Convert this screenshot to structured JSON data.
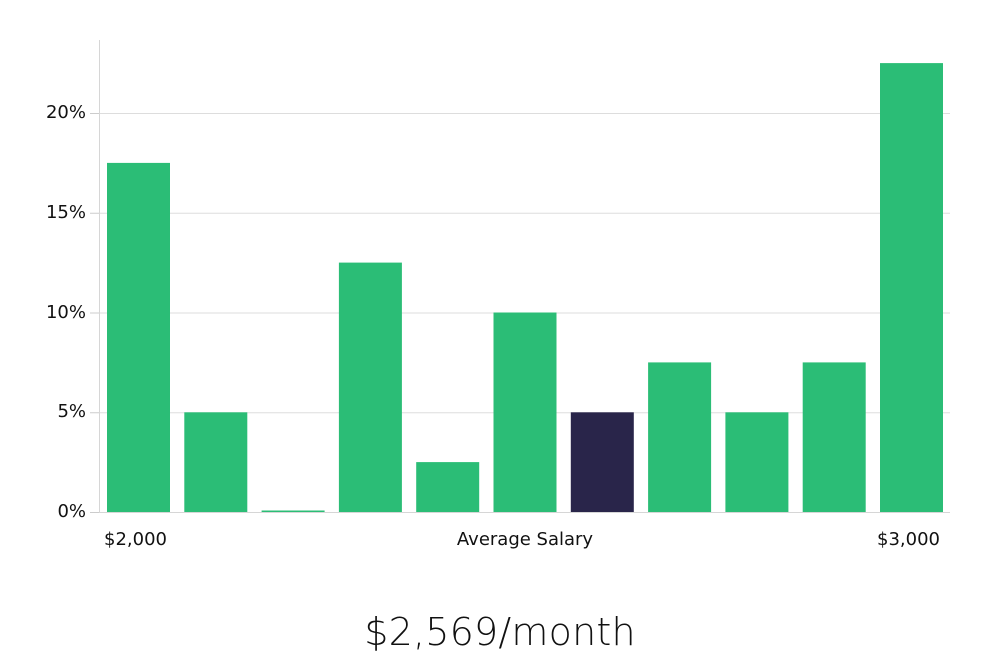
{
  "chart_data": {
    "type": "bar",
    "title": "",
    "xlabel": "Average Salary",
    "ylabel": "",
    "x_range_labels": {
      "min": "$2,000",
      "max": "$3,000"
    },
    "categories": [
      "bin1",
      "bin2",
      "bin3",
      "bin4",
      "bin5",
      "bin6",
      "bin7",
      "bin8",
      "bin9",
      "bin10",
      "bin11"
    ],
    "values": [
      17.5,
      5,
      0,
      12.5,
      2.5,
      10,
      5,
      7.5,
      5,
      7.5,
      22.5
    ],
    "highlight_index": 6,
    "ylim": [
      0,
      23.6
    ],
    "yticks": [
      0,
      5,
      10,
      15,
      20
    ],
    "ytick_labels": [
      "0%",
      "5%",
      "10%",
      "15%",
      "20%"
    ],
    "grid": true,
    "legend": null,
    "colors": {
      "bar": "#2bbd76",
      "highlight": "#29254a",
      "grid": "#dddddd",
      "axis": "#cccccc"
    }
  },
  "headline": "$2,569/month",
  "axis": {
    "x_min_label": "$2,000",
    "x_title": "Average Salary",
    "x_max_label": "$3,000"
  }
}
